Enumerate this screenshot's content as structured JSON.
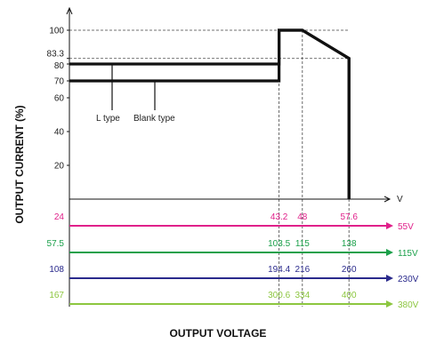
{
  "chart_data": {
    "type": "line",
    "title": "",
    "xlabel": "OUTPUT VOLTAGE",
    "ylabel": "OUTPUT CURRENT (%)",
    "x_unit": "V",
    "ylim": [
      0,
      100
    ],
    "y_ticks": [
      "100",
      "83.3",
      "80",
      "70",
      "60",
      "40",
      "20"
    ],
    "y_tick_values": [
      100,
      83.3,
      80,
      70,
      60,
      40,
      20
    ],
    "xlim": [
      0,
      66
    ],
    "x_ticks": [
      "43.2",
      "48",
      "57.6"
    ],
    "x_tick_values": [
      43.2,
      48,
      57.6
    ],
    "series": [
      {
        "name": "L type",
        "points": [
          [
            0,
            80
          ],
          [
            43.2,
            80
          ],
          [
            43.2,
            100
          ],
          [
            48,
            100
          ],
          [
            57.6,
            83.3
          ],
          [
            57.6,
            0
          ]
        ]
      },
      {
        "name": "Blank type",
        "points": [
          [
            0,
            70
          ],
          [
            43.2,
            70
          ],
          [
            43.2,
            100
          ],
          [
            48,
            100
          ],
          [
            57.6,
            83.3
          ],
          [
            57.6,
            0
          ]
        ]
      }
    ],
    "reference_lines": [
      {
        "axis": "y",
        "value": 100
      },
      {
        "axis": "y",
        "value": 83.3
      },
      {
        "axis": "x",
        "value": 43.2
      },
      {
        "axis": "x",
        "value": 48
      }
    ],
    "voltage_scales": [
      {
        "name": "55V",
        "color": "#e0208a",
        "start": "24",
        "ticks": [
          "43.2",
          "48",
          "57.6"
        ]
      },
      {
        "name": "115V",
        "color": "#1aa04a",
        "start": "57.5",
        "ticks": [
          "103.5",
          "115",
          "138"
        ]
      },
      {
        "name": "230V",
        "color": "#2a2a8c",
        "start": "108",
        "ticks": [
          "194.4",
          "216",
          "260"
        ]
      },
      {
        "name": "380V",
        "color": "#8cc63f",
        "start": "167",
        "ticks": [
          "300.6",
          "334",
          "400"
        ]
      }
    ]
  }
}
